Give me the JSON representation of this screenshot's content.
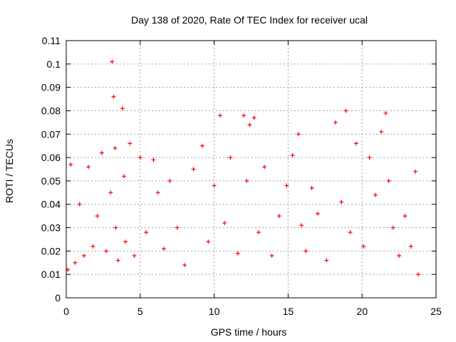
{
  "chart_data": {
    "type": "scatter",
    "title": "Day 138 of 2020, Rate Of TEC Index for receiver ucal",
    "xlabel": "GPS time / hours",
    "ylabel": "ROTI / TECUs",
    "xlim": [
      0,
      25
    ],
    "ylim": [
      0,
      0.11
    ],
    "x_ticks": [
      0,
      5,
      10,
      15,
      20,
      25
    ],
    "x_tick_labels": [
      "0",
      "5",
      "10",
      "15",
      "20",
      "25"
    ],
    "y_ticks": [
      0,
      0.01,
      0.02,
      0.03,
      0.04,
      0.05,
      0.06,
      0.07,
      0.08,
      0.09,
      0.1,
      0.11
    ],
    "y_tick_labels": [
      "0",
      "0.01",
      "0.02",
      "0.03",
      "0.04",
      "0.05",
      "0.06",
      "0.07",
      "0.08",
      "0.09",
      "0.1",
      "0.11"
    ],
    "grid": true,
    "marker": "+",
    "series": [
      {
        "name": "ROTI",
        "color": "#ff0000",
        "x": [
          0.1,
          0.3,
          0.6,
          0.9,
          1.2,
          1.5,
          1.8,
          2.1,
          2.4,
          2.7,
          3.0,
          3.1,
          3.2,
          3.3,
          3.35,
          3.5,
          3.8,
          3.9,
          4.0,
          4.3,
          4.6,
          5.0,
          5.4,
          5.9,
          6.2,
          6.6,
          7.0,
          7.5,
          8.0,
          8.6,
          9.2,
          9.6,
          10.0,
          10.4,
          10.7,
          11.1,
          11.6,
          12.0,
          12.2,
          12.4,
          12.7,
          13.0,
          13.4,
          13.9,
          14.4,
          14.9,
          15.3,
          15.7,
          15.9,
          16.2,
          16.6,
          17.0,
          17.6,
          18.2,
          18.6,
          18.9,
          19.2,
          19.6,
          20.1,
          20.5,
          20.9,
          21.3,
          21.6,
          21.8,
          22.1,
          22.5,
          22.9,
          23.3,
          23.6,
          23.8
        ],
        "y": [
          0.012,
          0.057,
          0.015,
          0.04,
          0.018,
          0.056,
          0.022,
          0.035,
          0.062,
          0.02,
          0.045,
          0.101,
          0.086,
          0.064,
          0.03,
          0.016,
          0.081,
          0.052,
          0.024,
          0.066,
          0.018,
          0.06,
          0.028,
          0.059,
          0.045,
          0.021,
          0.05,
          0.03,
          0.014,
          0.055,
          0.065,
          0.024,
          0.048,
          0.078,
          0.032,
          0.06,
          0.019,
          0.078,
          0.05,
          0.074,
          0.077,
          0.028,
          0.056,
          0.018,
          0.035,
          0.048,
          0.061,
          0.07,
          0.031,
          0.02,
          0.047,
          0.036,
          0.016,
          0.075,
          0.041,
          0.08,
          0.028,
          0.066,
          0.022,
          0.06,
          0.044,
          0.071,
          0.079,
          0.05,
          0.03,
          0.018,
          0.035,
          0.022,
          0.054,
          0.01
        ]
      }
    ]
  }
}
